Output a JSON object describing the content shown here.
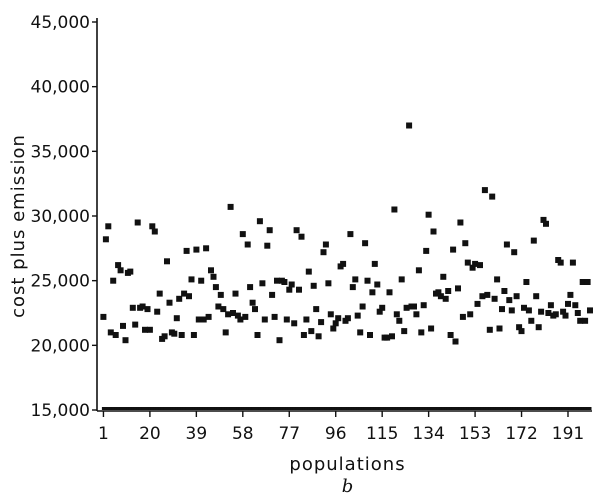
{
  "chart_data": {
    "type": "scatter",
    "xlabel": "populations",
    "ylabel": "cost plus emission",
    "panel_label": "b",
    "x_ticks": [
      "1",
      "20",
      "39",
      "58",
      "77",
      "96",
      "115",
      "134",
      "153",
      "172",
      "191"
    ],
    "y_ticks": [
      "15,000",
      "20,000",
      "25,000",
      "30,000",
      "35,000",
      "40,000",
      "45,000"
    ],
    "xlim": [
      0,
      200
    ],
    "ylim": [
      15000,
      45000
    ],
    "grid": false,
    "marker_color": "#111111",
    "baseline_value": 15000,
    "series": [
      {
        "x": [
          1,
          2,
          3,
          4,
          5,
          6,
          7,
          8,
          9,
          10,
          11,
          12,
          13,
          14,
          15,
          16,
          17,
          18,
          19,
          20,
          21,
          22,
          23,
          24,
          25,
          26,
          27,
          28,
          29,
          30,
          31,
          32,
          33,
          34,
          35,
          36,
          37,
          38,
          39,
          40,
          41,
          42,
          43,
          44,
          45,
          46,
          47,
          48,
          49,
          50,
          51,
          52,
          53,
          54,
          55,
          56,
          57,
          58,
          59,
          60,
          61,
          62,
          63,
          64,
          65,
          66,
          67,
          68,
          69,
          70,
          71,
          72,
          73,
          74,
          75,
          76,
          77,
          78,
          79,
          80,
          81,
          82,
          83,
          84,
          85,
          86,
          87,
          88,
          89,
          90,
          91,
          92,
          93,
          94,
          95,
          96,
          97,
          98,
          99,
          100,
          101,
          102,
          103,
          104,
          105,
          106,
          107,
          108,
          109,
          110,
          111,
          112,
          113,
          114,
          115,
          116,
          117,
          118,
          119,
          120,
          121,
          122,
          123,
          124,
          125,
          126,
          127,
          128,
          129,
          130,
          131,
          132,
          133,
          134,
          135,
          136,
          137,
          138,
          139,
          140,
          141,
          142,
          143,
          144,
          145,
          146,
          147,
          148,
          149,
          150,
          151,
          152,
          153,
          154,
          155,
          156,
          157,
          158,
          159,
          160,
          161,
          162,
          163,
          164,
          165,
          166,
          167,
          168,
          169,
          170,
          171,
          172,
          173,
          174,
          175,
          176,
          177,
          178,
          179,
          180,
          181,
          182,
          183,
          184,
          185,
          186,
          187,
          188,
          189,
          190,
          191,
          192,
          193,
          194,
          195,
          196,
          197,
          198,
          199,
          200
        ],
        "y": [
          22200,
          28200,
          29200,
          21000,
          25000,
          20800,
          26200,
          25800,
          21500,
          20400,
          25600,
          25700,
          22900,
          21600,
          29500,
          22900,
          23000,
          21200,
          22800,
          21200,
          29200,
          28800,
          22600,
          24000,
          20500,
          20700,
          26500,
          23300,
          21000,
          20900,
          22100,
          23600,
          20800,
          24000,
          27300,
          23800,
          25100,
          20800,
          27400,
          22000,
          25000,
          22000,
          27500,
          22200,
          25800,
          25300,
          24500,
          23000,
          23900,
          22800,
          21000,
          22400,
          30700,
          22500,
          24000,
          22300,
          22000,
          28600,
          22200,
          27800,
          24500,
          23300,
          22800,
          20800,
          29600,
          24800,
          22000,
          27700,
          28900,
          23900,
          22200,
          25000,
          20400,
          25000,
          24900,
          22000,
          24300,
          24700,
          21700,
          28900,
          24300,
          28400,
          20800,
          22000,
          25700,
          21100,
          24600,
          22800,
          20700,
          21800,
          27200,
          27800,
          24800,
          22400,
          21300,
          21700,
          22100,
          26100,
          26300,
          21900,
          22100,
          28600,
          24500,
          25100,
          22300,
          21000,
          23000,
          27900,
          25000,
          20800,
          24100,
          26300,
          24700,
          22600,
          22900,
          20600,
          20600,
          24100,
          20700,
          30500,
          22400,
          21900,
          25100,
          21100,
          22900,
          37000,
          23000,
          23000,
          22400,
          25800,
          21000,
          23100,
          27300,
          30100,
          21300,
          28800,
          24000,
          24100,
          23800,
          25300,
          23600,
          24200,
          20800,
          27400,
          20300,
          24400,
          29500,
          22200,
          27900,
          26400,
          22400,
          26000,
          26300,
          23200,
          26200,
          23800,
          32000,
          23900,
          21200,
          31500,
          23600,
          25100,
          21300,
          22800,
          24200,
          27800,
          23500,
          22700,
          27200,
          23800,
          21400,
          21100,
          22900,
          24900,
          22700,
          21900,
          28100,
          23800,
          21400,
          22600,
          29700,
          29400,
          22500,
          23100,
          22300,
          22400,
          26600,
          26400,
          22600,
          22300,
          23200,
          23900,
          26400,
          23100,
          22500,
          21900,
          24900,
          21900,
          24900,
          22700
        ]
      }
    ]
  }
}
